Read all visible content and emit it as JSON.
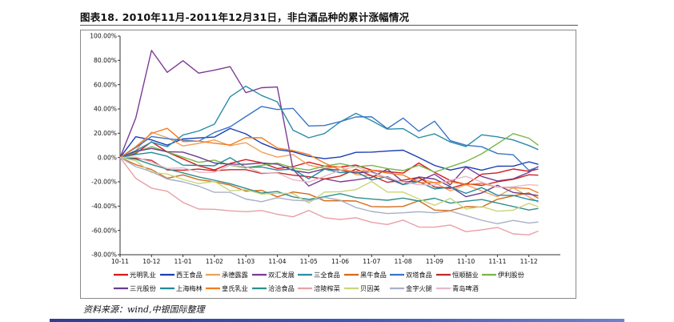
{
  "title": "图表18. 2010年11月-2011年12月31日，非白酒品种的累计涨幅情况",
  "source": "资料来源：wind,中银国际整理",
  "chart_data": {
    "type": "line",
    "title": "",
    "xlabel": "",
    "ylabel": "",
    "x_ticks": [
      "10-11",
      "10-12",
      "11-01",
      "11-02",
      "11-03",
      "11-04",
      "11-05",
      "11-06",
      "11-07",
      "11-08",
      "11-09",
      "11-10",
      "11-11",
      "11-12"
    ],
    "y_ticks": [
      "100.00%",
      "80.00%",
      "60.00%",
      "40.00%",
      "20.00%",
      "0.00%",
      "-20.00%",
      "-40.00%",
      "-60.00%",
      "-80.00%"
    ],
    "ylim": [
      -80,
      100
    ],
    "x_range": [
      0,
      14
    ],
    "grid": false,
    "legend_position": "bottom",
    "series": [
      {
        "name": "光明乳业",
        "color": "#d7191c",
        "x": [
          0,
          0.5,
          1,
          1.5,
          2,
          2.5,
          3,
          3.5,
          4,
          4.5,
          5,
          5.5,
          6,
          6.5,
          7,
          7.5,
          8,
          8.5,
          9,
          9.5,
          10,
          10.5,
          11,
          11.5,
          12,
          12.5,
          13,
          13.3
        ],
        "values": [
          0,
          5,
          12,
          2,
          -2,
          -5,
          -8,
          -5,
          -4,
          -6,
          -8,
          -5,
          -3,
          -9,
          -10,
          -6,
          -8,
          -10,
          -14,
          -7,
          -13,
          -17,
          -20,
          -14,
          -15,
          -11,
          -10,
          -7
        ]
      },
      {
        "name": "西王食品",
        "color": "#1b3fb5",
        "x": [
          0,
          0.5,
          1,
          1.5,
          2,
          2.5,
          3,
          3.5,
          4,
          4.5,
          5,
          5.5,
          6,
          6.5,
          7,
          7.5,
          8,
          8.5,
          9,
          9.5,
          10,
          10.5,
          11,
          11.5,
          12,
          12.5,
          13,
          13.3
        ],
        "values": [
          0,
          15,
          12,
          8,
          14,
          16,
          18,
          26,
          22,
          14,
          8,
          5,
          0,
          -3,
          -2,
          2,
          3,
          5,
          7,
          2,
          -4,
          -8,
          -6,
          -10,
          -8,
          -9,
          -6,
          -8
        ]
      },
      {
        "name": "承德露露",
        "color": "#f0a15a",
        "x": [
          0,
          0.5,
          1,
          1.5,
          2,
          2.5,
          3,
          3.5,
          4,
          4.5,
          5,
          5.5,
          6,
          6.5,
          7,
          7.5,
          8,
          8.5,
          9,
          9.5,
          10,
          10.5,
          11,
          11.5,
          12,
          12.5,
          13,
          13.3
        ],
        "values": [
          0,
          8,
          20,
          15,
          12,
          10,
          14,
          12,
          10,
          5,
          2,
          0,
          -5,
          -8,
          -10,
          -12,
          -15,
          -18,
          -20,
          -18,
          -22,
          -25,
          -24,
          -28,
          -30,
          -27,
          -32,
          -35
        ]
      },
      {
        "name": "双汇发展",
        "color": "#7c3b94",
        "x": [
          0,
          0.5,
          1,
          1.5,
          2,
          2.5,
          3,
          3.5,
          4,
          4.5,
          5,
          5.5,
          6,
          6.5,
          7,
          7.5,
          8,
          8.5,
          9,
          9.5,
          10,
          10.5,
          11,
          11.5,
          12,
          12.5,
          13,
          13.3
        ],
        "values": [
          0,
          30,
          90,
          70,
          78,
          72,
          70,
          75,
          55,
          55,
          60,
          -10,
          -25,
          -15,
          -22,
          -18,
          -15,
          -12,
          -18,
          -20,
          -15,
          -20,
          -10,
          -15,
          -18,
          -20,
          -10,
          -8
        ]
      },
      {
        "name": "三全食品",
        "color": "#2b8da8",
        "x": [
          0,
          0.5,
          1,
          1.5,
          2,
          2.5,
          3,
          3.5,
          4,
          4.5,
          5,
          5.5,
          6,
          6.5,
          7,
          7.5,
          8,
          8.5,
          9,
          9.5,
          10,
          10.5,
          11,
          11.5,
          12,
          12.5,
          13,
          13.3
        ],
        "values": [
          0,
          8,
          15,
          10,
          18,
          20,
          25,
          48,
          58,
          52,
          48,
          25,
          18,
          20,
          28,
          34,
          28,
          22,
          24,
          18,
          22,
          15,
          10,
          18,
          15,
          12,
          8,
          6
        ]
      },
      {
        "name": "黑牛食品",
        "color": "#d46a1a",
        "x": [
          0,
          0.5,
          1,
          1.5,
          2,
          2.5,
          3,
          3.5,
          4,
          4.5,
          5,
          5.5,
          6,
          6.5,
          7,
          7.5,
          8,
          8.5,
          9,
          9.5,
          10,
          10.5,
          11,
          11.5,
          12,
          12.5,
          13,
          13.3
        ],
        "values": [
          0,
          -8,
          -10,
          -15,
          -12,
          -18,
          -22,
          -25,
          -28,
          -25,
          -30,
          -28,
          -32,
          -38,
          -36,
          -34,
          -38,
          -40,
          -42,
          -38,
          -44,
          -42,
          -38,
          -40,
          -36,
          -34,
          -30,
          -32
        ]
      },
      {
        "name": "双塔食品",
        "color": "#3875c7",
        "x": [
          0,
          0.5,
          1,
          1.5,
          2,
          2.5,
          3,
          3.5,
          4,
          4.5,
          5,
          5.5,
          6,
          6.5,
          7,
          7.5,
          8,
          8.5,
          9,
          9.5,
          10,
          10.5,
          11,
          11.5,
          12,
          12.5,
          13,
          13.3
        ],
        "values": [
          0,
          10,
          15,
          18,
          12,
          15,
          20,
          25,
          35,
          40,
          42,
          38,
          28,
          25,
          30,
          34,
          32,
          26,
          30,
          24,
          28,
          15,
          10,
          8,
          5,
          0,
          -8,
          -10
        ]
      },
      {
        "name": "恒顺醋业",
        "color": "#c0292b",
        "x": [
          0,
          0.5,
          1,
          1.5,
          2,
          2.5,
          3,
          3.5,
          4,
          4.5,
          5,
          5.5,
          6,
          6.5,
          7,
          7.5,
          8,
          8.5,
          9,
          9.5,
          10,
          10.5,
          11,
          11.5,
          12,
          12.5,
          13,
          13.3
        ],
        "values": [
          0,
          -2,
          -4,
          -8,
          -10,
          -12,
          -10,
          -8,
          -12,
          -14,
          -10,
          -15,
          -18,
          -16,
          -14,
          -12,
          -15,
          -18,
          -20,
          -18,
          -22,
          -25,
          -24,
          -22,
          -18,
          -20,
          -15,
          -12
        ]
      },
      {
        "name": "伊利股份",
        "color": "#7ab648",
        "x": [
          0,
          0.5,
          1,
          1.5,
          2,
          2.5,
          3,
          3.5,
          4,
          4.5,
          5,
          5.5,
          6,
          6.5,
          7,
          7.5,
          8,
          8.5,
          9,
          9.5,
          10,
          10.5,
          11,
          11.5,
          12,
          12.5,
          13,
          13.3
        ],
        "values": [
          0,
          5,
          10,
          6,
          2,
          -2,
          0,
          -4,
          -6,
          -4,
          -2,
          -6,
          -8,
          -5,
          -3,
          -6,
          -5,
          -8,
          -10,
          -6,
          -12,
          -8,
          -4,
          2,
          10,
          18,
          14,
          8
        ]
      },
      {
        "name": "三元股份",
        "color": "#6a3d8f",
        "x": [
          0,
          0.5,
          1,
          1.5,
          2,
          2.5,
          3,
          3.5,
          4,
          4.5,
          5,
          5.5,
          6,
          6.5,
          7,
          7.5,
          8,
          8.5,
          9,
          9.5,
          10,
          10.5,
          11,
          11.5,
          12,
          12.5,
          13,
          13.3
        ],
        "values": [
          0,
          5,
          10,
          5,
          2,
          0,
          -2,
          -5,
          -8,
          -5,
          -3,
          -10,
          -15,
          -10,
          -8,
          -12,
          -14,
          -18,
          -20,
          -15,
          -20,
          -25,
          -30,
          -28,
          -25,
          -30,
          -28,
          -30
        ]
      },
      {
        "name": "上海梅林",
        "color": "#1f8a9a",
        "x": [
          0,
          0.5,
          1,
          1.5,
          2,
          2.5,
          3,
          3.5,
          4,
          4.5,
          5,
          5.5,
          6,
          6.5,
          7,
          7.5,
          8,
          8.5,
          9,
          9.5,
          10,
          10.5,
          11,
          11.5,
          12,
          12.5,
          13,
          13.3
        ],
        "values": [
          0,
          2,
          5,
          0,
          -5,
          -8,
          -5,
          -2,
          -6,
          -10,
          -8,
          -12,
          -15,
          -12,
          -10,
          -14,
          -16,
          -18,
          -20,
          -22,
          -24,
          -26,
          -28,
          -26,
          -30,
          -32,
          -34,
          -36
        ]
      },
      {
        "name": "皇氏乳业",
        "color": "#f47c20",
        "x": [
          0,
          0.5,
          1,
          1.5,
          2,
          2.5,
          3,
          3.5,
          4,
          4.5,
          5,
          5.5,
          6,
          6.5,
          7,
          7.5,
          8,
          8.5,
          9,
          9.5,
          10,
          10.5,
          11,
          11.5,
          12,
          12.5,
          13,
          13.3
        ],
        "values": [
          0,
          10,
          18,
          22,
          14,
          16,
          12,
          8,
          15,
          18,
          10,
          5,
          0,
          -5,
          -8,
          -10,
          -12,
          -15,
          -14,
          -18,
          -20,
          -22,
          -24,
          -20,
          -22,
          -25,
          -28,
          -30
        ]
      },
      {
        "name": "洽洽食品",
        "color": "#2e8f8a",
        "x": [
          0,
          0.5,
          1,
          1.5,
          2,
          2.5,
          3,
          3.5,
          4,
          4.5,
          5,
          5.5,
          6,
          6.5,
          7,
          7.5,
          8,
          8.5,
          9,
          9.5,
          10,
          10.5,
          11,
          11.5,
          12,
          12.5,
          13,
          13.3
        ],
        "values": [
          0,
          -3,
          -8,
          -12,
          -15,
          -18,
          -20,
          -22,
          -25,
          -28,
          -26,
          -30,
          -32,
          -30,
          -28,
          -32,
          -34,
          -36,
          -35,
          -38,
          -36,
          -40,
          -38,
          -36,
          -38,
          -40,
          -42,
          -40
        ]
      },
      {
        "name": "涪陵榨菜",
        "color": "#e8a0a8",
        "x": [
          0,
          0.5,
          1,
          1.5,
          2,
          2.5,
          3,
          3.5,
          4,
          4.5,
          5,
          5.5,
          6,
          6.5,
          7,
          7.5,
          8,
          8.5,
          9,
          9.5,
          10,
          10.5,
          11,
          11.5,
          12,
          12.5,
          13,
          13.3
        ],
        "values": [
          0,
          -15,
          -25,
          -30,
          -35,
          -42,
          -45,
          -42,
          -44,
          -46,
          -45,
          -48,
          -46,
          -48,
          -50,
          -52,
          -52,
          -54,
          -54,
          -56,
          -56,
          -58,
          -60,
          -58,
          -60,
          -62,
          -62,
          -63
        ]
      },
      {
        "name": "贝因美",
        "color": "#c8d67a",
        "x": [
          0,
          0.5,
          1,
          1.5,
          2,
          2.5,
          3,
          3.5,
          4,
          4.5,
          5,
          5.5,
          6,
          6.5,
          7,
          7.5,
          8,
          8.5,
          9,
          9.5,
          10,
          10.5,
          11,
          11.5,
          12,
          12.5,
          13,
          13.3
        ],
        "values": [
          0,
          -5,
          -10,
          -15,
          -18,
          -20,
          -22,
          -25,
          -28,
          -30,
          -28,
          -32,
          -35,
          -30,
          -28,
          -25,
          -22,
          -26,
          -30,
          -34,
          -38,
          -36,
          -40,
          -42,
          -44,
          -42,
          -40,
          -38
        ]
      },
      {
        "name": "金字火腿",
        "color": "#a8b0c8",
        "x": [
          0,
          0.5,
          1,
          1.5,
          2,
          2.5,
          3,
          3.5,
          4,
          4.5,
          5,
          5.5,
          6,
          6.5,
          7,
          7.5,
          8,
          8.5,
          9,
          9.5,
          10,
          10.5,
          11,
          11.5,
          12,
          12.5,
          13,
          13.3
        ],
        "values": [
          0,
          -5,
          -10,
          -18,
          -22,
          -26,
          -30,
          -28,
          -32,
          -34,
          -32,
          -36,
          -38,
          -35,
          -36,
          -40,
          -42,
          -44,
          -45,
          -46,
          -48,
          -46,
          -48,
          -50,
          -52,
          -50,
          -54,
          -55
        ]
      },
      {
        "name": "青岛啤酒",
        "color": "#e8b8c8",
        "x": [
          0,
          0.5,
          1,
          1.5,
          2,
          2.5,
          3,
          3.5,
          4,
          4.5,
          5,
          5.5,
          6,
          6.5,
          7,
          7.5,
          8,
          8.5,
          9,
          9.5,
          10,
          10.5,
          11,
          11.5,
          12,
          12.5,
          13,
          13.3
        ],
        "values": [
          0,
          -2,
          -5,
          -8,
          -6,
          -10,
          -12,
          -8,
          -10,
          -14,
          -12,
          -16,
          -18,
          -15,
          -12,
          -10,
          -14,
          -16,
          -18,
          -20,
          -22,
          -20,
          -18,
          -22,
          -24,
          -22,
          -20,
          -22
        ]
      }
    ]
  }
}
